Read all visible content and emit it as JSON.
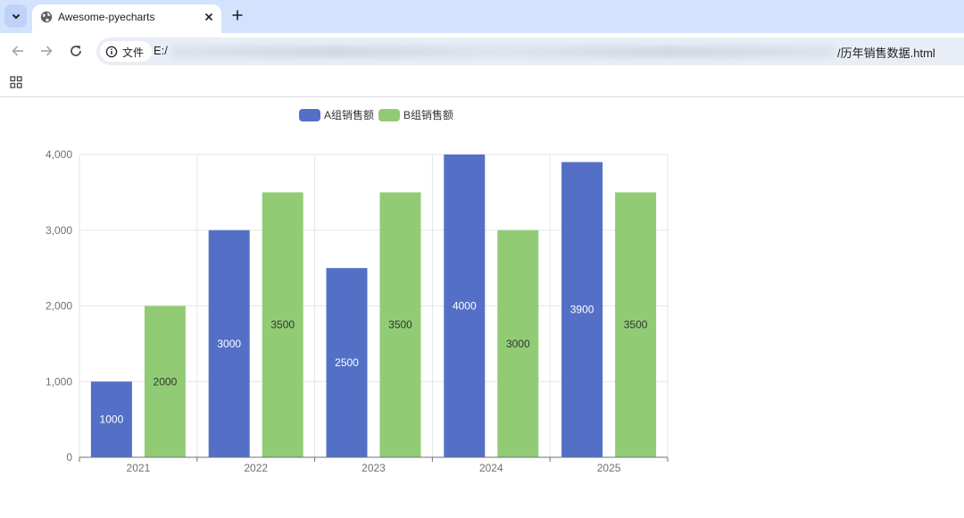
{
  "browser": {
    "tab_title": "Awesome-pyecharts",
    "url_prefix": "E:/",
    "url_suffix": "/历年销售数据.html",
    "site_info_label": "文件"
  },
  "icons": [
    "tab-search-icon",
    "globe-icon",
    "close-icon",
    "plus-icon",
    "back-arrow-icon",
    "forward-arrow-icon",
    "reload-icon",
    "info-icon",
    "apps-grid-icon"
  ],
  "chart_data": {
    "type": "bar",
    "categories": [
      "2021",
      "2022",
      "2023",
      "2024",
      "2025"
    ],
    "series": [
      {
        "name": "A组销售额",
        "values": [
          1000,
          3000,
          2500,
          4000,
          3900
        ],
        "color": "#5470c6",
        "label_color": "#ffffff"
      },
      {
        "name": "B组销售额",
        "values": [
          2000,
          3500,
          3500,
          3000,
          3500
        ],
        "color": "#91cc75",
        "label_color": "#333333"
      }
    ],
    "ylim": [
      0,
      4000
    ],
    "yticks": [
      "0",
      "1,000",
      "2,000",
      "3,000",
      "4,000"
    ],
    "grid": true,
    "legend": "top-center",
    "data_labels": "inside"
  }
}
